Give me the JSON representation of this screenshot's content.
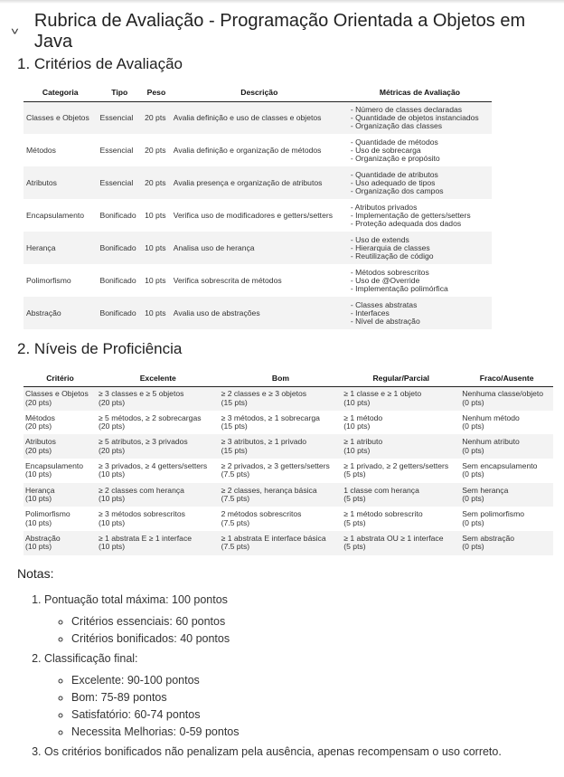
{
  "header": {
    "title": "Rubrica de Avaliação - Programação Orientada a Objetos em Java",
    "chevron_icon": "chevron-down-icon"
  },
  "section1": {
    "title": "1. Critérios de Avaliação",
    "columns": [
      "Categoria",
      "Tipo",
      "Peso",
      "Descrição",
      "Métricas de Avaliação"
    ],
    "rows": [
      [
        "Classes e Objetos",
        "Essencial",
        "20 pts",
        "Avalia definição e uso de classes e objetos",
        "- Número de classes declaradas\n- Quantidade de objetos instanciados\n- Organização das classes"
      ],
      [
        "Métodos",
        "Essencial",
        "20 pts",
        "Avalia definição e organização de métodos",
        "- Quantidade de métodos\n- Uso de sobrecarga\n- Organização e propósito"
      ],
      [
        "Atributos",
        "Essencial",
        "20 pts",
        "Avalia presença e organização de atributos",
        "- Quantidade de atributos\n- Uso adequado de tipos\n- Organização dos campos"
      ],
      [
        "Encapsulamento",
        "Bonificado",
        "10 pts",
        "Verifica uso de modificadores e getters/setters",
        "- Atributos privados\n- Implementação de getters/setters\n- Proteção adequada dos dados"
      ],
      [
        "Herança",
        "Bonificado",
        "10 pts",
        "Analisa uso de herança",
        "- Uso de extends\n- Hierarquia de classes\n- Reutilização de código"
      ],
      [
        "Polimorfismo",
        "Bonificado",
        "10 pts",
        "Verifica sobrescrita de métodos",
        "- Métodos sobrescritos\n- Uso de @Override\n- Implementação polimórfica"
      ],
      [
        "Abstração",
        "Bonificado",
        "10 pts",
        "Avalia uso de abstrações",
        "- Classes abstratas\n- Interfaces\n- Nível de abstração"
      ]
    ]
  },
  "section2": {
    "title": "2. Níveis de Proficiência",
    "columns": [
      "Critério",
      "Excelente",
      "Bom",
      "Regular/Parcial",
      "Fraco/Ausente"
    ],
    "rows": [
      [
        "Classes e Objetos\n(20 pts)",
        "≥ 3 classes e ≥ 5 objetos\n(20 pts)",
        "≥ 2 classes e ≥ 3 objetos\n(15 pts)",
        "≥ 1 classe e ≥ 1 objeto\n(10 pts)",
        "Nenhuma classe/objeto\n(0 pts)"
      ],
      [
        "Métodos\n(20 pts)",
        "≥ 5 métodos, ≥ 2 sobrecargas\n(20 pts)",
        "≥ 3 métodos, ≥ 1 sobrecarga\n(15 pts)",
        "≥ 1 método\n(10 pts)",
        "Nenhum método\n(0 pts)"
      ],
      [
        "Atributos\n(20 pts)",
        "≥ 5 atributos, ≥ 3 privados\n(20 pts)",
        "≥ 3 atributos, ≥ 1 privado\n(15 pts)",
        "≥ 1 atributo\n(10 pts)",
        "Nenhum atributo\n(0 pts)"
      ],
      [
        "Encapsulamento\n(10 pts)",
        "≥ 3 privados, ≥ 4 getters/setters\n(10 pts)",
        "≥ 2 privados, ≥ 3 getters/setters\n(7.5 pts)",
        "≥ 1 privado, ≥ 2 getters/setters\n(5 pts)",
        "Sem encapsulamento\n(0 pts)"
      ],
      [
        "Herança\n(10 pts)",
        "≥ 2 classes com herança\n(10 pts)",
        "≥ 2 classes, herança básica\n(7.5 pts)",
        "1 classe com herança\n(5 pts)",
        "Sem herança\n(0 pts)"
      ],
      [
        "Polimorfismo\n(10 pts)",
        "≥ 3 métodos sobrescritos\n(10 pts)",
        "2 métodos sobrescritos\n(7.5 pts)",
        "≥ 1 método sobrescrito\n(5 pts)",
        "Sem polimorfismo\n(0 pts)"
      ],
      [
        "Abstração\n(10 pts)",
        "≥ 1 abstrata E ≥ 1 interface\n(10 pts)",
        "≥ 1 abstrata E interface básica\n(7.5 pts)",
        "≥ 1 abstrata OU ≥ 1 interface\n(5 pts)",
        "Sem abstração\n(0 pts)"
      ]
    ]
  },
  "notes": {
    "title": "Notas:",
    "items": [
      {
        "text": "Pontuação total máxima: 100 pontos",
        "sub": [
          "Critérios essenciais: 60 pontos",
          "Critérios bonificados: 40 pontos"
        ]
      },
      {
        "text": "Classificação final:",
        "sub": [
          "Excelente: 90-100 pontos",
          "Bom: 75-89 pontos",
          "Satisfatório: 60-74 pontos",
          "Necessita Melhorias: 0-59 pontos"
        ]
      },
      {
        "text": "Os critérios bonificados não penalizam pela ausência, apenas recompensam o uso correto.",
        "sub": []
      }
    ]
  }
}
